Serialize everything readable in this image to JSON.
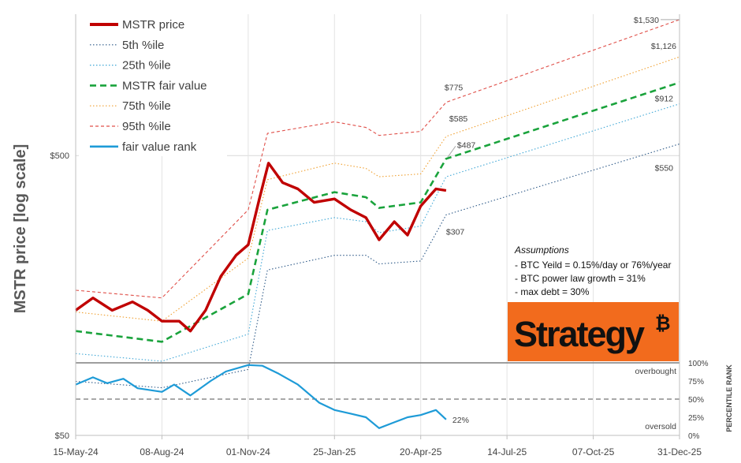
{
  "chart_data": {
    "type": "line",
    "ylabel": "MSTR price [log scale]",
    "y_scale": "log",
    "ylim": [
      50,
      1600
    ],
    "y_ticks": [
      {
        "value": 500,
        "label": "$500"
      },
      {
        "value": 50,
        "label": "$50"
      }
    ],
    "x_ticks": [
      "15-May-24",
      "08-Aug-24",
      "01-Nov-24",
      "25-Jan-25",
      "20-Apr-25",
      "14-Jul-25",
      "07-Oct-25",
      "31-Dec-25"
    ],
    "legend": [
      {
        "key": "price",
        "label": "MSTR price",
        "color": "#c00000",
        "style": "solid"
      },
      {
        "key": "p5",
        "label": "5th %ile",
        "color": "#2e5a88",
        "style": "dotted"
      },
      {
        "key": "p25",
        "label": "25th %ile",
        "color": "#3fa7d6",
        "style": "dotted"
      },
      {
        "key": "fair",
        "label": "MSTR fair value",
        "color": "#1aa33c",
        "style": "dashed"
      },
      {
        "key": "p75",
        "label": "75th %ile",
        "color": "#f0a030",
        "style": "dotted"
      },
      {
        "key": "p95",
        "label": "95th %ile",
        "color": "#e0504a",
        "style": "dashed"
      },
      {
        "key": "rank",
        "label": "fair value rank",
        "color": "#1e9bd7",
        "style": "solid"
      }
    ],
    "series_points": {
      "price": [
        [
          "15-May-24",
          140
        ],
        [
          "01-Jun-24",
          155
        ],
        [
          "20-Jun-24",
          140
        ],
        [
          "10-Jul-24",
          150
        ],
        [
          "25-Jul-24",
          140
        ],
        [
          "08-Aug-24",
          128
        ],
        [
          "25-Aug-24",
          128
        ],
        [
          "05-Sep-24",
          118
        ],
        [
          "20-Sep-24",
          140
        ],
        [
          "05-Oct-24",
          185
        ],
        [
          "20-Oct-24",
          220
        ],
        [
          "01-Nov-24",
          240
        ],
        [
          "12-Nov-24",
          350
        ],
        [
          "21-Nov-24",
          470
        ],
        [
          "05-Dec-24",
          400
        ],
        [
          "20-Dec-24",
          380
        ],
        [
          "05-Jan-25",
          340
        ],
        [
          "25-Jan-25",
          350
        ],
        [
          "10-Feb-25",
          320
        ],
        [
          "25-Feb-25",
          300
        ],
        [
          "10-Mar-25",
          250
        ],
        [
          "25-Mar-25",
          290
        ],
        [
          "07-Apr-25",
          260
        ],
        [
          "20-Apr-25",
          330
        ],
        [
          "05-May-25",
          380
        ],
        [
          "15-May-25",
          375
        ]
      ],
      "p5": [
        [
          "15-May-24",
          78
        ],
        [
          "08-Aug-24",
          74
        ],
        [
          "01-Nov-24",
          86
        ],
        [
          "20-Nov-24",
          195
        ],
        [
          "25-Jan-25",
          220
        ],
        [
          "25-Feb-25",
          220
        ],
        [
          "10-Mar-25",
          205
        ],
        [
          "20-Apr-25",
          210
        ],
        [
          "15-May-25",
          307
        ],
        [
          "31-Dec-25",
          550
        ]
      ],
      "p25": [
        [
          "15-May-24",
          98
        ],
        [
          "08-Aug-24",
          92
        ],
        [
          "01-Nov-24",
          115
        ],
        [
          "20-Nov-24",
          270
        ],
        [
          "25-Jan-25",
          300
        ],
        [
          "25-Feb-25",
          290
        ],
        [
          "10-Mar-25",
          265
        ],
        [
          "20-Apr-25",
          280
        ],
        [
          "15-May-25",
          420
        ],
        [
          "31-Dec-25",
          765
        ]
      ],
      "fair": [
        [
          "15-May-24",
          118
        ],
        [
          "08-Aug-24",
          108
        ],
        [
          "01-Nov-24",
          160
        ],
        [
          "20-Nov-24",
          320
        ],
        [
          "25-Jan-25",
          370
        ],
        [
          "25-Feb-25",
          355
        ],
        [
          "10-Mar-25",
          325
        ],
        [
          "20-Apr-25",
          340
        ],
        [
          "15-May-25",
          487
        ],
        [
          "31-Dec-25",
          912
        ]
      ],
      "p75": [
        [
          "15-May-24",
          138
        ],
        [
          "08-Aug-24",
          128
        ],
        [
          "01-Nov-24",
          215
        ],
        [
          "20-Nov-24",
          410
        ],
        [
          "25-Jan-25",
          470
        ],
        [
          "25-Feb-25",
          450
        ],
        [
          "10-Mar-25",
          420
        ],
        [
          "20-Apr-25",
          430
        ],
        [
          "15-May-25",
          585
        ],
        [
          "31-Dec-25",
          1126
        ]
      ],
      "p95": [
        [
          "15-May-24",
          165
        ],
        [
          "08-Aug-24",
          155
        ],
        [
          "01-Nov-24",
          320
        ],
        [
          "20-Nov-24",
          600
        ],
        [
          "25-Jan-25",
          660
        ],
        [
          "25-Feb-25",
          630
        ],
        [
          "10-Mar-25",
          590
        ],
        [
          "20-Apr-25",
          610
        ],
        [
          "15-May-25",
          775
        ],
        [
          "31-Dec-25",
          1530
        ]
      ]
    },
    "rank_axis": {
      "label": "PERCENTILE RANK",
      "ticks": [
        "100%",
        "75%",
        "50%",
        "25%",
        "0%"
      ],
      "ref_lines": [
        {
          "value": 100,
          "label": "overbought"
        },
        {
          "value": 50,
          "label": "oversold"
        }
      ]
    },
    "rank_points": [
      [
        "15-May-24",
        70
      ],
      [
        "01-Jun-24",
        80
      ],
      [
        "15-Jun-24",
        72
      ],
      [
        "01-Jul-24",
        78
      ],
      [
        "15-Jul-24",
        65
      ],
      [
        "08-Aug-24",
        60
      ],
      [
        "20-Aug-24",
        70
      ],
      [
        "05-Sep-24",
        55
      ],
      [
        "25-Sep-24",
        75
      ],
      [
        "10-Oct-24",
        88
      ],
      [
        "01-Nov-24",
        97
      ],
      [
        "15-Nov-24",
        96
      ],
      [
        "01-Dec-24",
        85
      ],
      [
        "20-Dec-24",
        70
      ],
      [
        "10-Jan-25",
        45
      ],
      [
        "25-Jan-25",
        35
      ],
      [
        "10-Feb-25",
        30
      ],
      [
        "25-Feb-25",
        25
      ],
      [
        "10-Mar-25",
        10
      ],
      [
        "25-Mar-25",
        18
      ],
      [
        "07-Apr-25",
        25
      ],
      [
        "20-Apr-25",
        28
      ],
      [
        "05-May-25",
        35
      ],
      [
        "15-May-25",
        22
      ]
    ],
    "end_labels": [
      {
        "series": "p95",
        "date": "31-Dec-25",
        "value": 1530,
        "label": "$1,530"
      },
      {
        "series": "p75",
        "date": "31-Dec-25",
        "value": 1126,
        "label": "$1,126"
      },
      {
        "series": "fair",
        "date": "31-Dec-25",
        "value": 912,
        "label": "$912"
      },
      {
        "series": "p5",
        "date": "31-Dec-25",
        "value": 550,
        "label": "$550"
      },
      {
        "series": "p95",
        "date": "15-May-25",
        "value": 775,
        "label": "$775"
      },
      {
        "series": "p75",
        "date": "15-May-25",
        "value": 585,
        "label": "$585"
      },
      {
        "series": "fair",
        "date": "15-May-25",
        "value": 487,
        "label": "$487"
      },
      {
        "series": "p5",
        "date": "15-May-25",
        "value": 307,
        "label": "$307"
      }
    ],
    "rank_end_label": {
      "date": "15-May-25",
      "value": 22,
      "label": "22%"
    },
    "assumptions": {
      "title": "Assumptions",
      "lines": [
        "- BTC Yeild = 0.15%/day or 76%/year",
        "- BTC power law growth = 31%",
        "- max debt = 30%"
      ]
    },
    "logo": {
      "text": "Strategy",
      "symbol": "₿",
      "bg_color": "#f26b1d",
      "text_color": "#111111"
    }
  }
}
